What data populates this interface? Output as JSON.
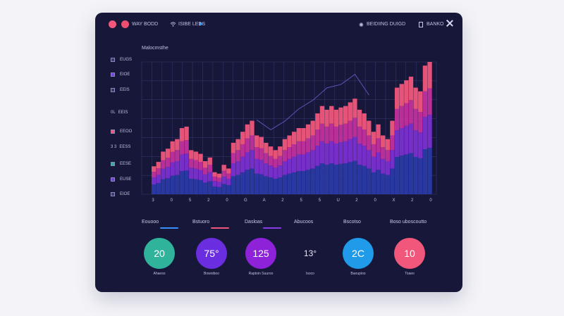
{
  "window": {
    "header_left_label": "WAY BODD",
    "header_mid_label": "ISIBE LEDS",
    "header_right_label": "BEIDIING DUIGD",
    "header_far_right_label": "BANKO"
  },
  "chart_data": {
    "type": "bar",
    "title": "Malocmsthe",
    "y_legend": [
      {
        "label": "EUGS",
        "color": "#3b3b70"
      },
      {
        "label": "EIOE",
        "color": "#7a3ee8"
      },
      {
        "label": "EEIS",
        "color": "#3b3b70"
      },
      {
        "label": "EEIS",
        "color": "#3b3b70"
      },
      {
        "label": "EEOO",
        "color": "#f0577b"
      },
      {
        "label": "EESS",
        "color": "#3b3b70"
      },
      {
        "label": "EESE",
        "color": "#2fb39b"
      },
      {
        "label": "EUSE",
        "color": "#7a3ee8"
      },
      {
        "label": "EIOE",
        "color": "#3b3b70"
      }
    ],
    "legend_prefixes": [
      "",
      "",
      "",
      "0L",
      "",
      "3 3",
      "",
      "",
      ""
    ],
    "x_tick_labels": [
      "3",
      "0",
      "5",
      "2",
      "0",
      "G",
      "A",
      "2",
      "5",
      "5",
      "U",
      "2",
      "0",
      "X",
      "2",
      "0"
    ],
    "series_colors": [
      "#2a3aa6",
      "#7b2fd0",
      "#c2309f",
      "#f0577b"
    ],
    "values": [
      38,
      44,
      58,
      62,
      72,
      75,
      90,
      92,
      60,
      58,
      55,
      45,
      50,
      30,
      28,
      40,
      35,
      70,
      75,
      85,
      95,
      100,
      80,
      78,
      70,
      65,
      60,
      65,
      75,
      80,
      85,
      90,
      90,
      95,
      100,
      110,
      120,
      115,
      120,
      115,
      118,
      120,
      125,
      130,
      115,
      110,
      100,
      85,
      95,
      80,
      75,
      100,
      145,
      150,
      155,
      160,
      145,
      140,
      175,
      180
    ],
    "ylim": [
      0,
      180
    ],
    "trend_line": "present"
  },
  "stats": {
    "labels": [
      "Eouooo",
      "Bstuoro",
      "Dasloas",
      "Abucoos",
      "Bscotso",
      "Boso uboscoutto"
    ],
    "underline_colors": [
      "#3a8fff",
      "#f0577b",
      "#8a3ce8",
      "",
      "",
      ""
    ]
  },
  "kpis": [
    {
      "value": "20",
      "label": "Ahaeso",
      "color": "#2fb39b"
    },
    {
      "value": "75°",
      "label": "Bowoiboo",
      "color": "#6a2ee0"
    },
    {
      "value": "125",
      "label": "Raptoin Suuroo",
      "color": "#8d22d8"
    },
    {
      "value": "13°",
      "label": "Isoco",
      "color": ""
    },
    {
      "value": "2C",
      "label": "Baoupioo",
      "color": "#1f9bea"
    },
    {
      "value": "10",
      "label": "Toaeo",
      "color": "#f0577b"
    }
  ]
}
